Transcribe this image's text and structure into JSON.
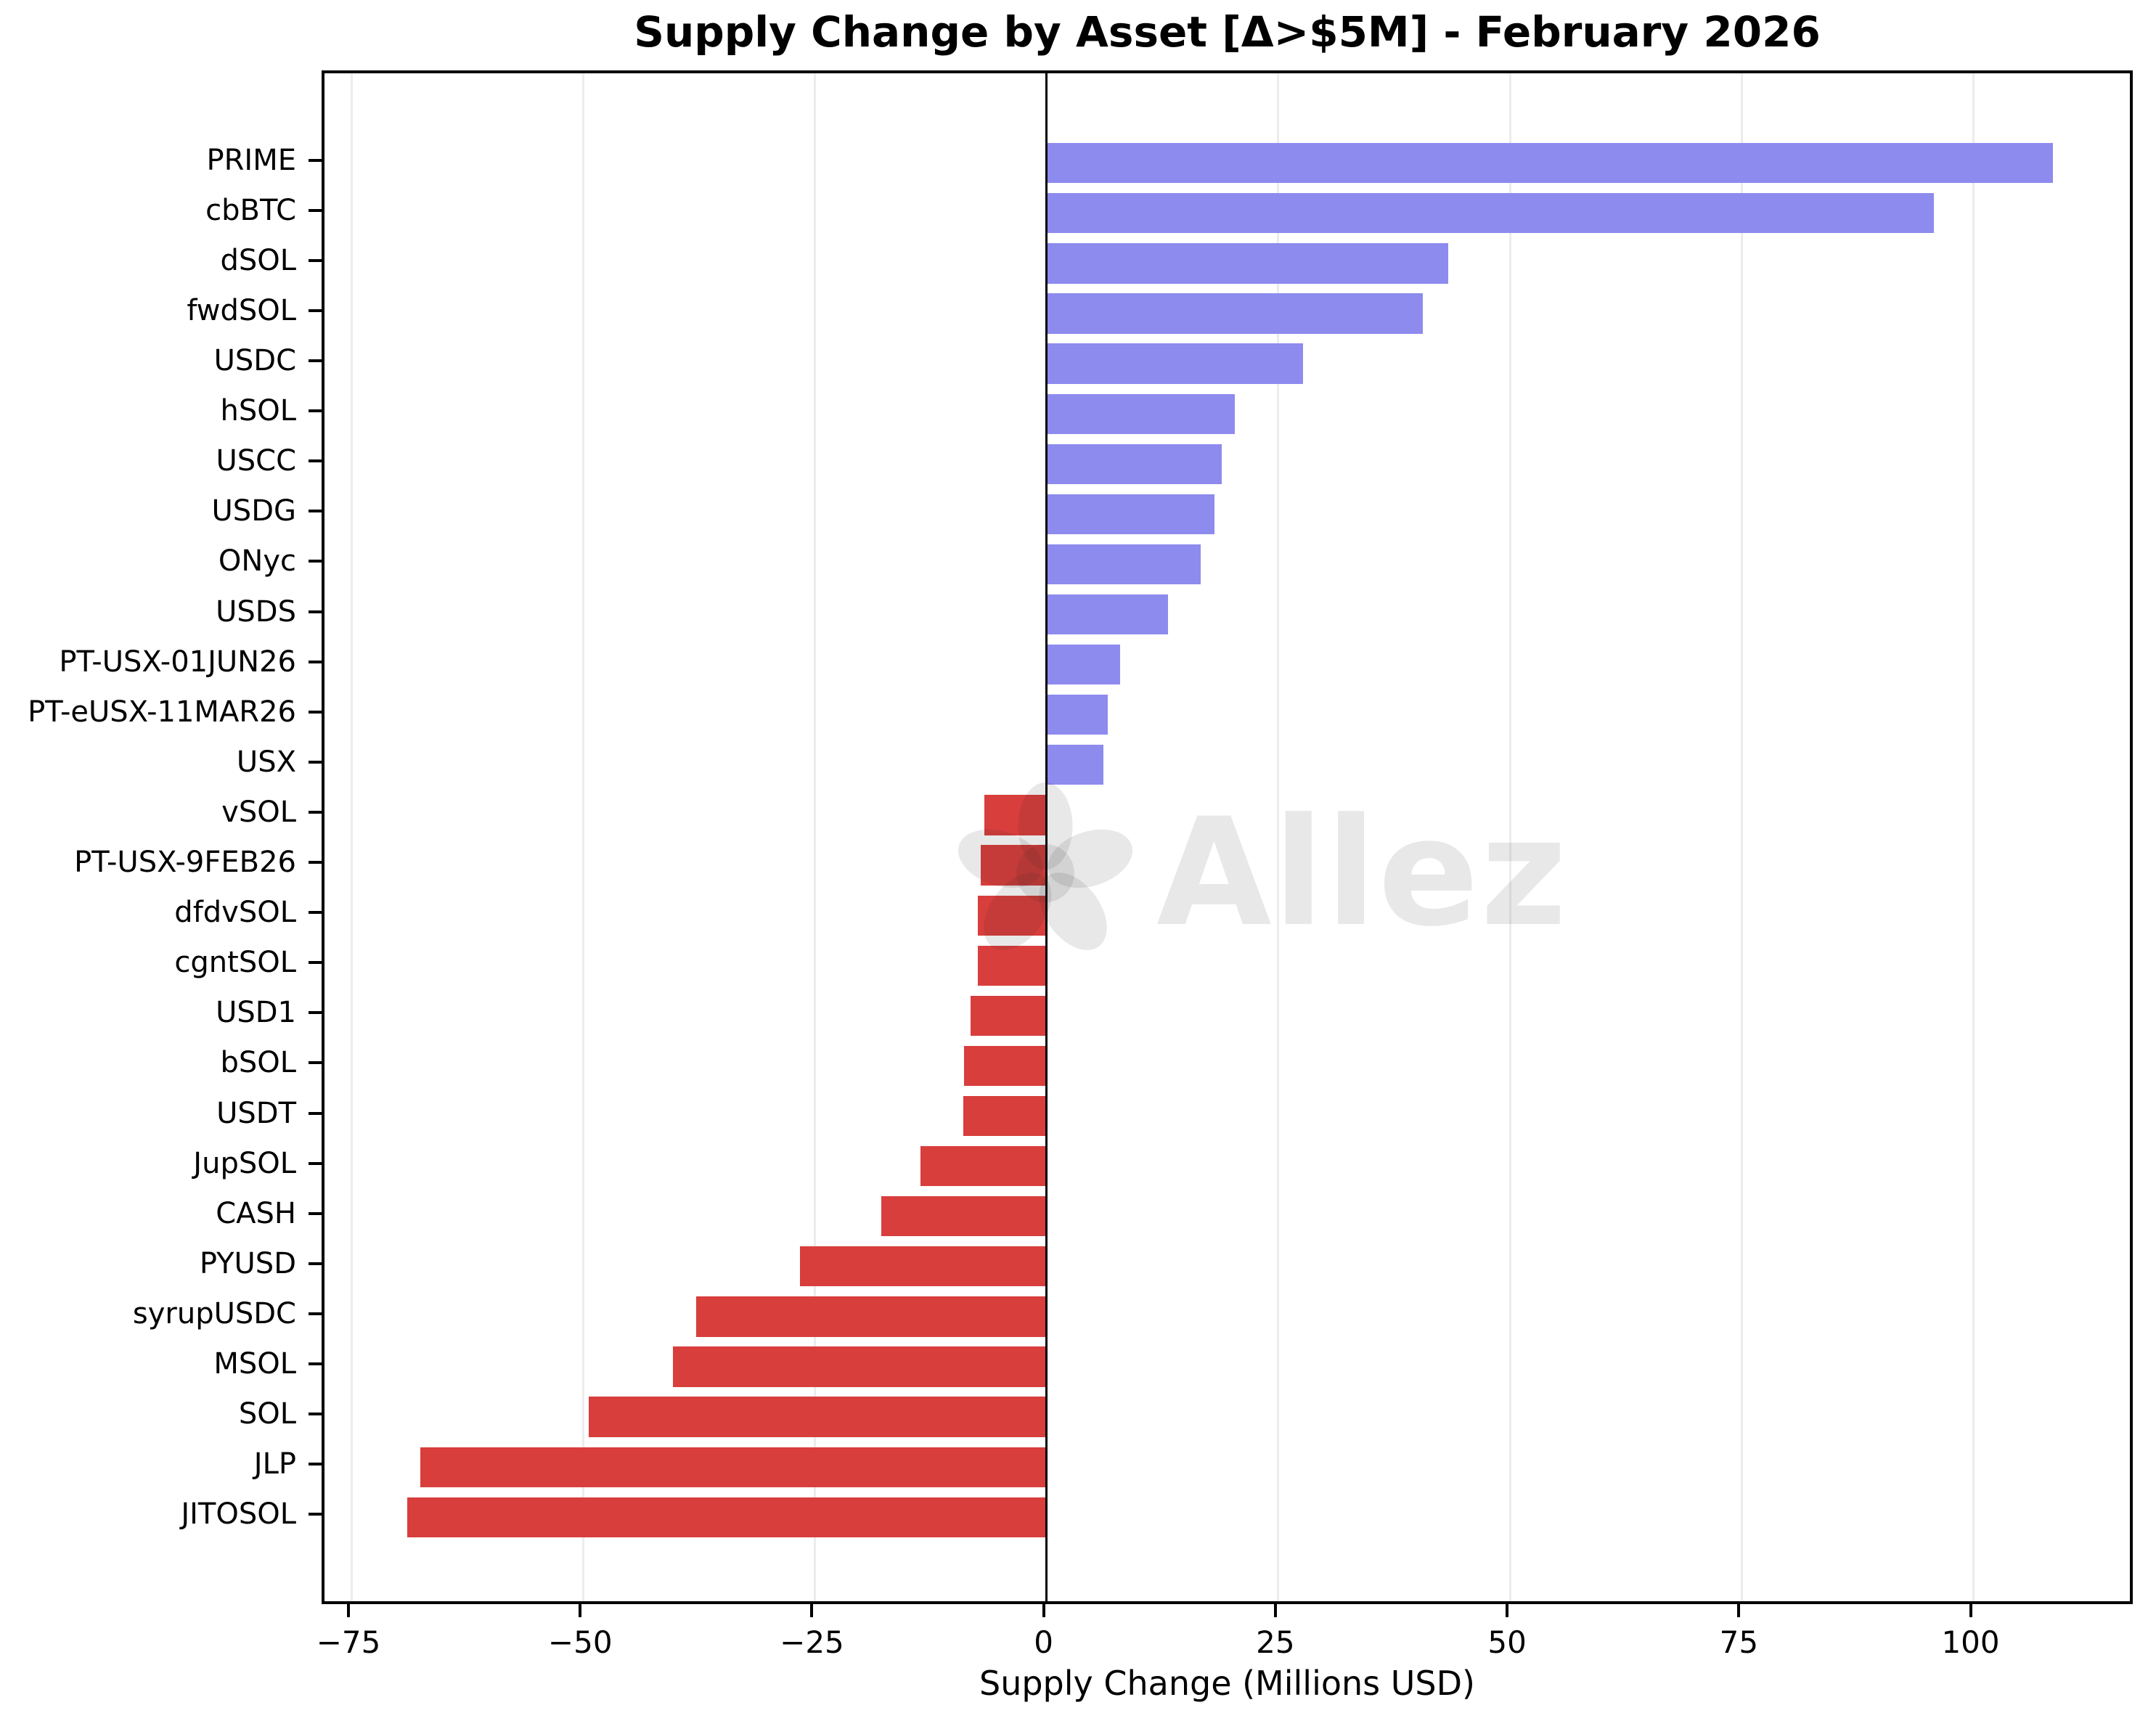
{
  "figure": {
    "title": "Supply Change by Asset [Δ>$5M] - February 2026",
    "xlabel": "Supply Change (Millions USD)",
    "watermark_text": "Allez"
  },
  "chart_data": {
    "type": "bar",
    "orientation": "horizontal",
    "title": "Supply Change by Asset [Δ>$5M] - February 2026",
    "xlabel": "Supply Change (Millions USD)",
    "ylabel": "",
    "categories": [
      "PRIME",
      "cbBTC",
      "dSOL",
      "fwdSOL",
      "USDC",
      "hSOL",
      "USCC",
      "USDG",
      "ONyc",
      "USDS",
      "PT-USX-01JUN26",
      "PT-eUSX-11MAR26",
      "USX",
      "vSOL",
      "PT-USX-9FEB26",
      "dfdvSOL",
      "cgntSOL",
      "USD1",
      "bSOL",
      "USDT",
      "JupSOL",
      "CASH",
      "PYUSD",
      "syrupUSDC",
      "MSOL",
      "SOL",
      "JLP",
      "JITOSOL"
    ],
    "values": [
      108.6,
      95.7,
      43.3,
      40.6,
      27.7,
      20.3,
      18.9,
      18.1,
      16.6,
      13.1,
      7.9,
      6.6,
      6.1,
      -6.7,
      -7.1,
      -7.4,
      -7.4,
      -8.2,
      -8.9,
      -9.0,
      -13.6,
      -17.8,
      -26.6,
      -37.8,
      -40.3,
      -49.4,
      -67.6,
      -69.0
    ],
    "x_ticks": [
      -75,
      -50,
      -25,
      0,
      25,
      50,
      75,
      100
    ],
    "x_tick_labels": [
      "−75",
      "−50",
      "−25",
      "0",
      "25",
      "50",
      "75",
      "100"
    ],
    "xlim": [
      -77.9,
      117.5
    ],
    "grid": "vertical",
    "legend": "none",
    "colors": {
      "positive_bar": "#8d8bee",
      "negative_bar": "#d83e3c",
      "gridline": "#ececec",
      "axis": "#000000",
      "background": "#ffffff"
    },
    "watermark": "Allez"
  }
}
